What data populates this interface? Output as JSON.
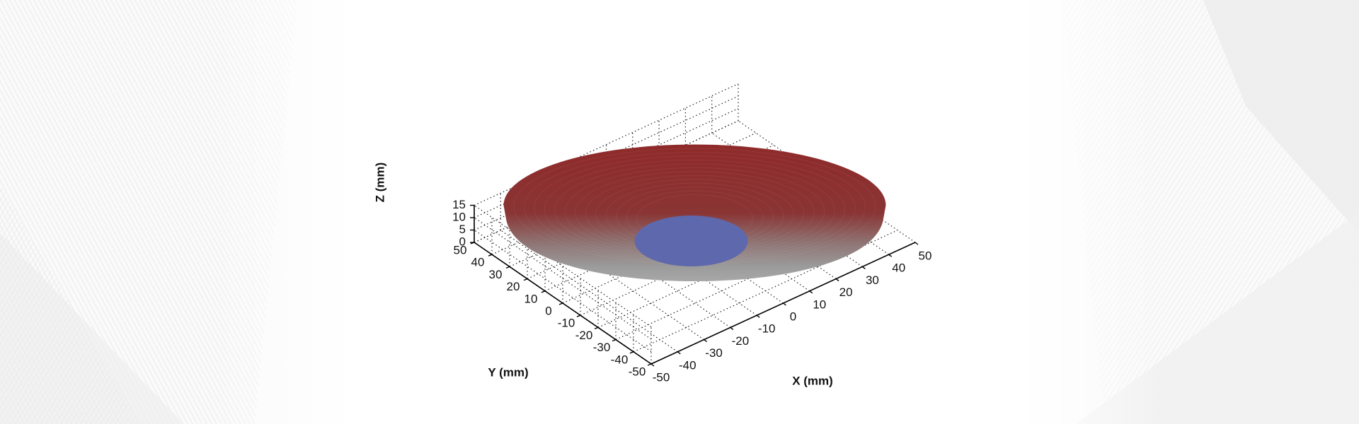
{
  "chart_data": {
    "type": "surface",
    "title": "",
    "xlabel": "X (mm)",
    "ylabel": "Y (mm)",
    "zlabel": "Z (mm)",
    "xlim": [
      -50,
      50
    ],
    "ylim": [
      -50,
      50
    ],
    "zlim": [
      0,
      15
    ],
    "x_ticks": [
      -50,
      -40,
      -30,
      -20,
      -10,
      0,
      10,
      20,
      30,
      40,
      50
    ],
    "y_ticks": [
      -50,
      -40,
      -30,
      -20,
      -10,
      0,
      10,
      20,
      30,
      40,
      50
    ],
    "z_ticks": [
      0,
      5,
      10,
      15
    ],
    "grid": true,
    "grid_style": "dotted",
    "view": "isometric",
    "surfaces": [
      {
        "shape": "bowl",
        "outer_rim_radius": 50,
        "rim_height": 15,
        "bottom_height": 0,
        "top_color": "#8e2a2a",
        "lower_color": "#9a9a9a"
      },
      {
        "shape": "disc",
        "radius": 12,
        "height": 0,
        "center_x": 0,
        "center_y": 0,
        "color": "#5e68ad"
      }
    ]
  }
}
